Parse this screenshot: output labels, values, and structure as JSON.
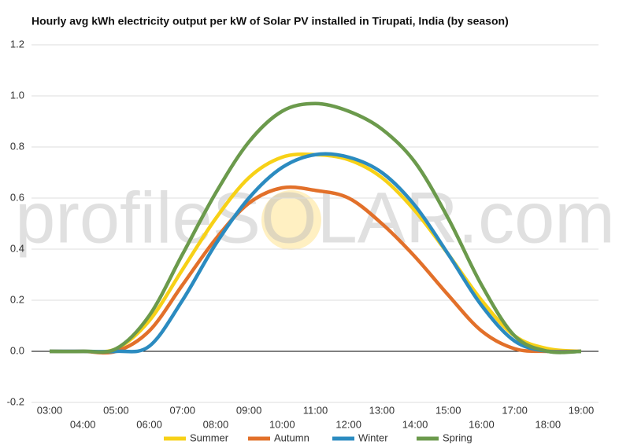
{
  "chart_data": {
    "type": "line",
    "title": "Hourly avg kWh electricity output per kW of Solar PV installed in Tirupati, India (by season)",
    "watermark": "profileSOLAR.com",
    "categories": [
      "03:00",
      "04:00",
      "05:00",
      "06:00",
      "07:00",
      "08:00",
      "09:00",
      "10:00",
      "11:00",
      "12:00",
      "13:00",
      "14:00",
      "15:00",
      "16:00",
      "17:00",
      "18:00",
      "19:00"
    ],
    "series": [
      {
        "name": "Summer",
        "color": "#f7d117",
        "values": [
          0,
          0,
          0.01,
          0.12,
          0.32,
          0.52,
          0.68,
          0.76,
          0.77,
          0.75,
          0.68,
          0.55,
          0.38,
          0.2,
          0.06,
          0.01,
          0
        ]
      },
      {
        "name": "Autumn",
        "color": "#e2702a",
        "values": [
          0,
          0,
          0,
          0.08,
          0.26,
          0.44,
          0.58,
          0.64,
          0.63,
          0.6,
          0.5,
          0.37,
          0.22,
          0.08,
          0.01,
          0,
          0
        ]
      },
      {
        "name": "Winter",
        "color": "#2b8bc0",
        "values": [
          0,
          0,
          0,
          0.02,
          0.2,
          0.42,
          0.6,
          0.72,
          0.77,
          0.76,
          0.7,
          0.57,
          0.38,
          0.18,
          0.04,
          0,
          0
        ]
      },
      {
        "name": "Spring",
        "color": "#6b9a4c",
        "values": [
          0,
          0,
          0.01,
          0.14,
          0.38,
          0.62,
          0.82,
          0.94,
          0.97,
          0.94,
          0.87,
          0.74,
          0.52,
          0.26,
          0.06,
          0,
          0
        ]
      }
    ],
    "ylim": [
      -0.2,
      1.2
    ],
    "yticks": [
      -0.2,
      {
        "value": 0,
        "label": "0.0"
      },
      0.2,
      0.4,
      0.6,
      0.8,
      {
        "value": 1,
        "label": "1.0"
      },
      1.2
    ],
    "grid": true
  }
}
